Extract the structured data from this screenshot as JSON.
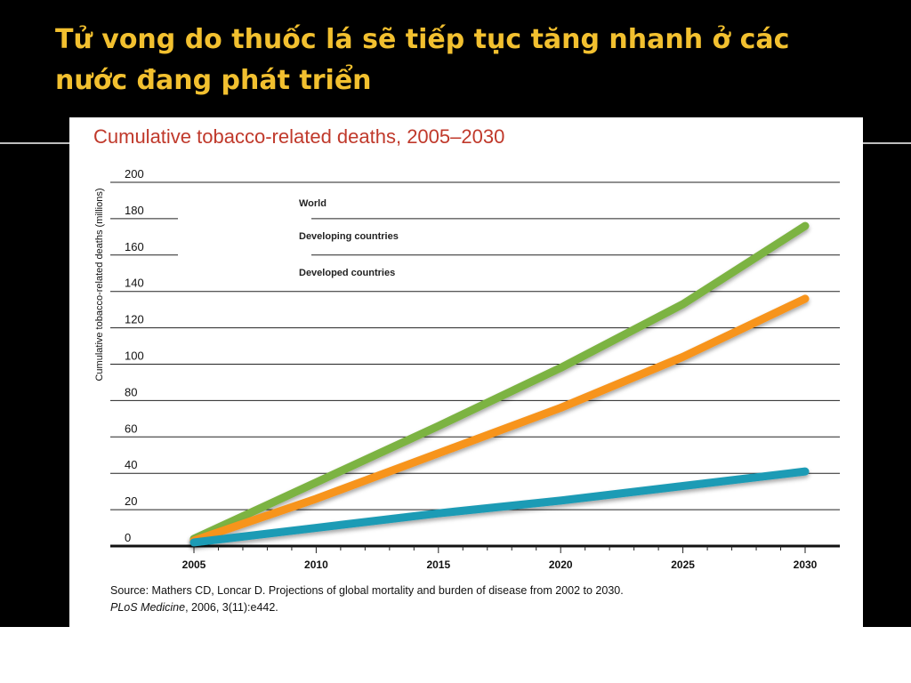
{
  "slide": {
    "title": "Tử vong do thuốc lá sẽ tiếp tục tăng nhanh ở các nước đang phát triển"
  },
  "source": {
    "line1": "Source: Mathers CD, Loncar D. Projections of global mortality and burden of disease from 2002 to 2030.",
    "journal": "PLoS Medicine",
    "citation": ", 2006, 3(11):e442."
  },
  "colors": {
    "title": "#f2c02f",
    "chart_title": "#c0392b",
    "world": "#7cb342",
    "developing": "#f7941d",
    "developed": "#1a9bb5"
  },
  "chart_data": {
    "type": "line",
    "title": "Cumulative tobacco-related deaths, 2005–2030",
    "xlabel": "",
    "ylabel": "Cumulative tobacco-related deaths (millions)",
    "x": [
      2005,
      2010,
      2015,
      2020,
      2025,
      2030
    ],
    "xlim": [
      2005,
      2030
    ],
    "ylim": [
      0,
      200
    ],
    "xticks": [
      "2005",
      "2010",
      "2015",
      "2020",
      "2025",
      "2030"
    ],
    "yticks": [
      "0",
      "20",
      "40",
      "60",
      "80",
      "100",
      "120",
      "140",
      "160",
      "180",
      "200"
    ],
    "grid": true,
    "legend_position": "top-left",
    "series": [
      {
        "name": "World",
        "color": "#7cb342",
        "values": [
          4,
          35,
          66,
          98,
          133,
          176
        ]
      },
      {
        "name": "Developing countries",
        "color": "#f7941d",
        "values": [
          3,
          26,
          51,
          76,
          104,
          136
        ]
      },
      {
        "name": "Developed countries",
        "color": "#1a9bb5",
        "values": [
          2,
          10,
          18,
          25,
          33,
          41
        ]
      }
    ]
  }
}
